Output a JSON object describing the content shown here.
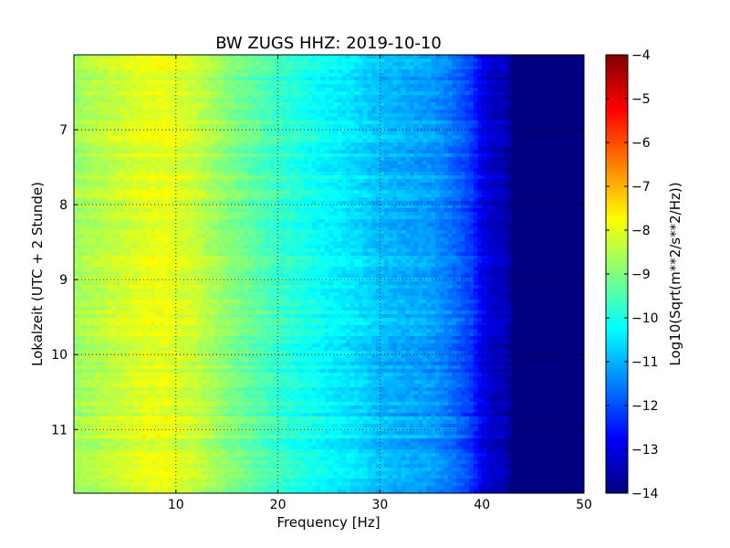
{
  "chart_data": {
    "type": "heatmap",
    "title": "BW ZUGS HHZ: 2019-10-10",
    "xlabel": "Frequency [Hz]",
    "ylabel": "Lokalzeit (UTC + 2 Stunde)",
    "xlim": [
      0,
      50
    ],
    "ylim": [
      6.0,
      11.85
    ],
    "y_inverted": true,
    "x_ticks": [
      10,
      20,
      30,
      40,
      50
    ],
    "y_ticks": [
      7,
      8,
      9,
      10,
      11
    ],
    "grid": true,
    "colormap": "jet",
    "colorbar": {
      "label": "Log10(Sqrt(m**2/s**2/Hz))",
      "range": [
        -14,
        -4
      ],
      "ticks": [
        -4,
        -5,
        -6,
        -7,
        -8,
        -9,
        -10,
        -11,
        -12,
        -13,
        -14
      ]
    },
    "profile": {
      "frequency_hz": [
        0,
        2,
        5,
        7,
        9,
        12,
        15,
        18,
        20,
        22,
        25,
        28,
        30,
        33,
        35,
        37,
        39,
        40,
        41,
        42.5,
        43,
        50
      ],
      "level": [
        -8.7,
        -8.5,
        -8.2,
        -8.0,
        -7.95,
        -8.3,
        -8.9,
        -9.4,
        -9.7,
        -9.95,
        -10.3,
        -10.6,
        -10.9,
        -11.1,
        -11.2,
        -11.6,
        -12.2,
        -12.9,
        -13.3,
        -13.5,
        -14,
        -14
      ]
    }
  }
}
